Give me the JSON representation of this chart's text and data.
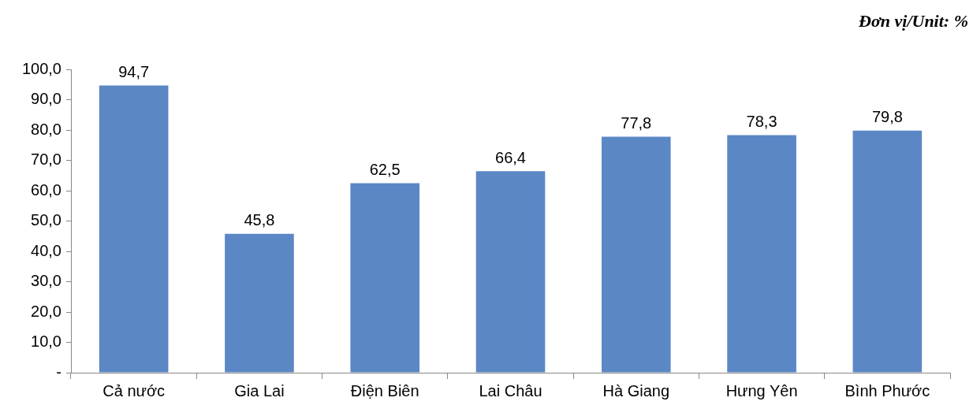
{
  "chart_data": {
    "type": "bar",
    "subtitle": "Đơn vị/Unit: %",
    "categories": [
      "Cả nước",
      "Gia Lai",
      "Điện Biên",
      "Lai Châu",
      "Hà Giang",
      "Hưng Yên",
      "Bình Phước"
    ],
    "values": [
      94.7,
      45.8,
      62.5,
      66.4,
      77.8,
      78.3,
      79.8
    ],
    "value_labels": [
      "94,7",
      "45,8",
      "62,5",
      "66,4",
      "77,8",
      "78,3",
      "79,8"
    ],
    "color": "#5b87c5",
    "ylim": [
      0,
      100
    ],
    "yticks": [
      {
        "value": 0,
        "label": "-"
      },
      {
        "value": 10,
        "label": "10,0"
      },
      {
        "value": 20,
        "label": "20,0"
      },
      {
        "value": 30,
        "label": "30,0"
      },
      {
        "value": 40,
        "label": "40,0"
      },
      {
        "value": 50,
        "label": "50,0"
      },
      {
        "value": 60,
        "label": "60,0"
      },
      {
        "value": 70,
        "label": "70,0"
      },
      {
        "value": 80,
        "label": "80,0"
      },
      {
        "value": 90,
        "label": "90,0"
      },
      {
        "value": 100,
        "label": "100,0"
      }
    ],
    "grid": false,
    "legend": false
  }
}
